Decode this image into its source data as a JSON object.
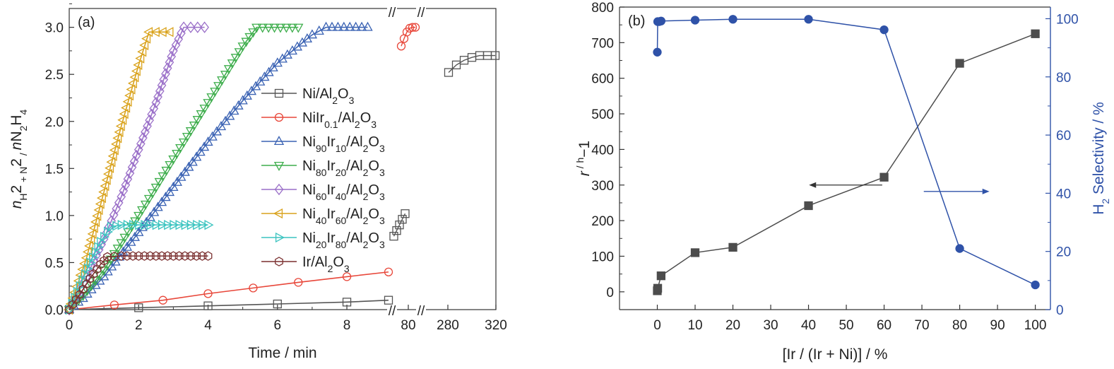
{
  "chart_data": [
    {
      "type": "line",
      "panel_label": "(a)",
      "xlabel": "Time / min",
      "ylabel_parts": [
        "n",
        "H",
        "2",
        " + N",
        "2",
        " / n",
        "N",
        "2",
        "H",
        "4"
      ],
      "ylim": [
        0,
        3.2
      ],
      "yticks": [
        "0.0",
        "0.5",
        "1.0",
        "1.5",
        "2.0",
        "2.5",
        "3.0"
      ],
      "xticks": [
        "0",
        "2",
        "4",
        "6",
        "8",
        "80",
        "280",
        "320"
      ],
      "break_marks": [
        "//",
        "//"
      ],
      "legend_position": "center-right",
      "series": [
        {
          "name_parts": [
            "Ni/Al",
            "2",
            "O",
            "3"
          ],
          "color": "#555555",
          "marker": "square",
          "x": [
            0,
            2,
            4,
            6,
            8,
            9.2
          ],
          "y": [
            0,
            0.02,
            0.04,
            0.06,
            0.08,
            0.1
          ],
          "late": [
            {
              "x": 75,
              "y": [
                0.78,
                0.84,
                0.9,
                0.96,
                1.02
              ]
            },
            {
              "x": 300,
              "y": [
                2.52,
                2.6,
                2.65,
                2.68,
                2.7,
                2.7,
                2.7
              ]
            }
          ]
        },
        {
          "name_parts": [
            "NiIr",
            "0.1",
            "/Al",
            "2",
            "O",
            "3"
          ],
          "color": "#e8473a",
          "marker": "circle",
          "x": [
            0,
            1.3,
            2.7,
            4,
            5.3,
            6.6,
            8,
            9.2
          ],
          "y": [
            0,
            0.05,
            0.1,
            0.17,
            0.23,
            0.29,
            0.35,
            0.4
          ],
          "late": [
            {
              "x": 80,
              "y": [
                2.8,
                2.88,
                2.95,
                2.99,
                3.0,
                3.0
              ]
            }
          ]
        },
        {
          "name_parts": [
            "Ni",
            "90",
            "Ir",
            "10",
            "/Al",
            "2",
            "O",
            "3"
          ],
          "color": "#3a62b3",
          "marker": "triangle-up",
          "x": [
            0,
            0.4,
            1.0,
            2.0,
            3.0,
            4.0,
            5.0,
            6.0,
            7.0,
            7.4,
            8.6
          ],
          "y": [
            0,
            0.12,
            0.35,
            0.82,
            1.3,
            1.78,
            2.22,
            2.62,
            2.92,
            3.0,
            3.0
          ]
        },
        {
          "name_parts": [
            "Ni",
            "80",
            "Ir",
            "20",
            "/Al",
            "2",
            "O",
            "3"
          ],
          "color": "#3fae4d",
          "marker": "triangle-down",
          "x": [
            0,
            0.4,
            1.0,
            2.0,
            3.0,
            4.0,
            5.0,
            5.4,
            6.6
          ],
          "y": [
            0,
            0.15,
            0.42,
            1.0,
            1.6,
            2.2,
            2.8,
            3.0,
            3.0
          ]
        },
        {
          "name_parts": [
            "Ni",
            "60",
            "Ir",
            "40",
            "/Al",
            "2",
            "O",
            "3"
          ],
          "color": "#9a6fc8",
          "marker": "diamond",
          "x": [
            0,
            0.5,
            1.0,
            1.5,
            2.0,
            2.5,
            3.0,
            3.3,
            3.9
          ],
          "y": [
            0,
            0.35,
            0.75,
            1.2,
            1.7,
            2.2,
            2.75,
            3.0,
            3.0
          ]
        },
        {
          "name_parts": [
            "Ni",
            "40",
            "Ir",
            "60",
            "/Al",
            "2",
            "O",
            "3"
          ],
          "color": "#d9a21b",
          "marker": "triangle-left",
          "x": [
            0,
            0.5,
            1.0,
            1.5,
            2.0,
            2.3,
            2.9
          ],
          "y": [
            0,
            0.55,
            1.25,
            1.95,
            2.6,
            2.95,
            2.95
          ]
        },
        {
          "name_parts": [
            "Ni",
            "20",
            "Ir",
            "80",
            "/Al",
            "2",
            "O",
            "3"
          ],
          "color": "#3cc4c0",
          "marker": "triangle-right",
          "x": [
            0,
            0.3,
            0.6,
            0.9,
            1.2,
            1.5,
            2.0,
            2.5,
            3.0,
            3.5,
            4.0
          ],
          "y": [
            0,
            0.25,
            0.5,
            0.72,
            0.88,
            0.9,
            0.9,
            0.9,
            0.9,
            0.9,
            0.9
          ]
        },
        {
          "name_parts": [
            "Ir/Al",
            "2",
            "O",
            "3"
          ],
          "color": "#7a2f2f",
          "marker": "hexagon",
          "x": [
            0,
            0.3,
            0.6,
            0.9,
            1.1,
            1.5,
            2.0,
            2.5,
            3.0,
            3.5,
            4.0
          ],
          "y": [
            0,
            0.16,
            0.33,
            0.48,
            0.56,
            0.57,
            0.57,
            0.57,
            0.57,
            0.57,
            0.57
          ]
        }
      ]
    },
    {
      "type": "line",
      "panel_label": "(b)",
      "xlabel": "[Ir / (Ir + Ni)] / %",
      "ylabel_left_parts": [
        "r",
        " / h",
        "−1"
      ],
      "ylabel_right_parts": [
        "H",
        "2",
        " Selectivity / %"
      ],
      "xlim": [
        -10,
        104
      ],
      "ylim_left": [
        -50,
        800
      ],
      "ylim_right": [
        0,
        104
      ],
      "xticks": [
        "0",
        "10",
        "20",
        "30",
        "40",
        "50",
        "60",
        "70",
        "80",
        "90",
        "100"
      ],
      "yticks_left": [
        "0",
        "100",
        "200",
        "300",
        "400",
        "500",
        "600",
        "700",
        "800"
      ],
      "yticks_right": [
        "0",
        "20",
        "40",
        "60",
        "80",
        "100"
      ],
      "series": [
        {
          "axis": "left",
          "color": "#4d4d4d",
          "marker": "square",
          "x": [
            0,
            0.1,
            1,
            10,
            20,
            40,
            60,
            80,
            100
          ],
          "y": [
            3,
            10,
            45,
            110,
            125,
            242,
            322,
            642,
            725
          ]
        },
        {
          "axis": "right",
          "color": "#2f52a8",
          "marker": "circle",
          "x": [
            0,
            0.1,
            0.5,
            1,
            10,
            20,
            40,
            60,
            80,
            100
          ],
          "y": [
            88.5,
            99,
            99,
            99.2,
            99.5,
            99.8,
            99.8,
            96.2,
            21,
            8.5
          ]
        }
      ]
    }
  ]
}
